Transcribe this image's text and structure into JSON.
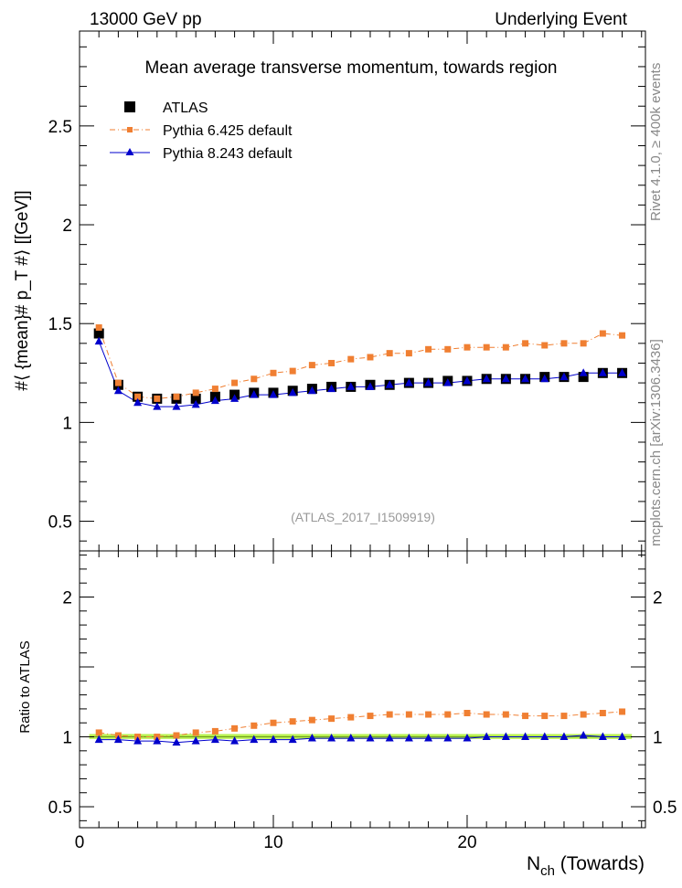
{
  "header": {
    "left": "13000 GeV pp",
    "right": "Underlying Event"
  },
  "side_labels": {
    "top": "Rivet 4.1.0, ≥ 400k events",
    "bottom": "mcplots.cern.ch [arXiv:1306.3436]"
  },
  "colors": {
    "atlas": "#000000",
    "pythia6": "#f07f32",
    "pythia8": "#0000cc",
    "band": "#b8f050",
    "watermark": "#999999"
  },
  "chart_data": [
    {
      "type": "scatter",
      "title": "Mean average transverse momentum, towards region",
      "ylabel": "#⟨ {mean}# p_T #⟩ [[GeV]]",
      "xlim": [
        0,
        29.2
      ],
      "ylim": [
        0.35,
        2.98
      ],
      "yticks": [
        0.5,
        1,
        1.5,
        2,
        2.5
      ],
      "ytick_labels": [
        "0.5",
        "1",
        "1.5",
        "2",
        "2.5"
      ],
      "annotation": "(ATLAS_2017_I1509919)",
      "x": [
        1,
        2,
        3,
        4,
        5,
        6,
        7,
        8,
        9,
        10,
        11,
        12,
        13,
        14,
        15,
        16,
        17,
        18,
        19,
        20,
        21,
        22,
        23,
        24,
        25,
        26,
        27,
        28
      ],
      "series": [
        {
          "name": "ATLAS",
          "marker": "square",
          "values": [
            1.45,
            1.19,
            1.13,
            1.12,
            1.12,
            1.12,
            1.13,
            1.14,
            1.15,
            1.15,
            1.16,
            1.17,
            1.18,
            1.18,
            1.19,
            1.19,
            1.2,
            1.2,
            1.21,
            1.21,
            1.22,
            1.22,
            1.22,
            1.23,
            1.23,
            1.23,
            1.25,
            1.25
          ]
        },
        {
          "name": "Pythia 6.425 default",
          "marker": "small-square",
          "line": "dash-dot",
          "values": [
            1.48,
            1.2,
            1.13,
            1.12,
            1.13,
            1.15,
            1.17,
            1.2,
            1.22,
            1.25,
            1.26,
            1.29,
            1.3,
            1.32,
            1.33,
            1.35,
            1.35,
            1.37,
            1.37,
            1.38,
            1.38,
            1.38,
            1.4,
            1.39,
            1.4,
            1.4,
            1.45,
            1.44
          ]
        },
        {
          "name": "Pythia 8.243 default",
          "marker": "triangle",
          "line": "solid",
          "values": [
            1.41,
            1.16,
            1.1,
            1.08,
            1.08,
            1.09,
            1.11,
            1.12,
            1.14,
            1.14,
            1.15,
            1.16,
            1.17,
            1.18,
            1.18,
            1.19,
            1.2,
            1.2,
            1.2,
            1.21,
            1.22,
            1.22,
            1.22,
            1.22,
            1.23,
            1.25,
            1.25,
            1.25
          ]
        }
      ]
    },
    {
      "type": "scatter",
      "ylabel": "Ratio to ATLAS",
      "xlabel": "N_ch (Towards)",
      "xlim": [
        0,
        29.2
      ],
      "ylim": [
        0.35,
        2.33
      ],
      "yticks": [
        0.5,
        1,
        2
      ],
      "ytick_labels": [
        "0.5",
        "1",
        "2"
      ],
      "xticks": [
        0,
        10,
        20
      ],
      "xtick_labels": [
        "0",
        "10",
        "20"
      ],
      "x": [
        1,
        2,
        3,
        4,
        5,
        6,
        7,
        8,
        9,
        10,
        11,
        12,
        13,
        14,
        15,
        16,
        17,
        18,
        19,
        20,
        21,
        22,
        23,
        24,
        25,
        26,
        27,
        28
      ],
      "band": [
        0.985,
        1.02
      ],
      "series": [
        {
          "name": "Pythia 6.425 default",
          "values": [
            1.03,
            1.01,
            1.0,
            1.0,
            1.01,
            1.03,
            1.04,
            1.06,
            1.08,
            1.1,
            1.11,
            1.12,
            1.13,
            1.14,
            1.15,
            1.16,
            1.16,
            1.16,
            1.16,
            1.17,
            1.16,
            1.16,
            1.15,
            1.15,
            1.15,
            1.16,
            1.17,
            1.18
          ]
        },
        {
          "name": "Pythia 8.243 default",
          "values": [
            0.98,
            0.98,
            0.97,
            0.97,
            0.96,
            0.97,
            0.98,
            0.97,
            0.98,
            0.98,
            0.98,
            0.99,
            0.99,
            0.99,
            0.99,
            0.99,
            0.99,
            0.99,
            0.99,
            0.99,
            1.0,
            1.0,
            1.0,
            1.0,
            1.0,
            1.01,
            1.0,
            1.0
          ]
        }
      ]
    }
  ]
}
